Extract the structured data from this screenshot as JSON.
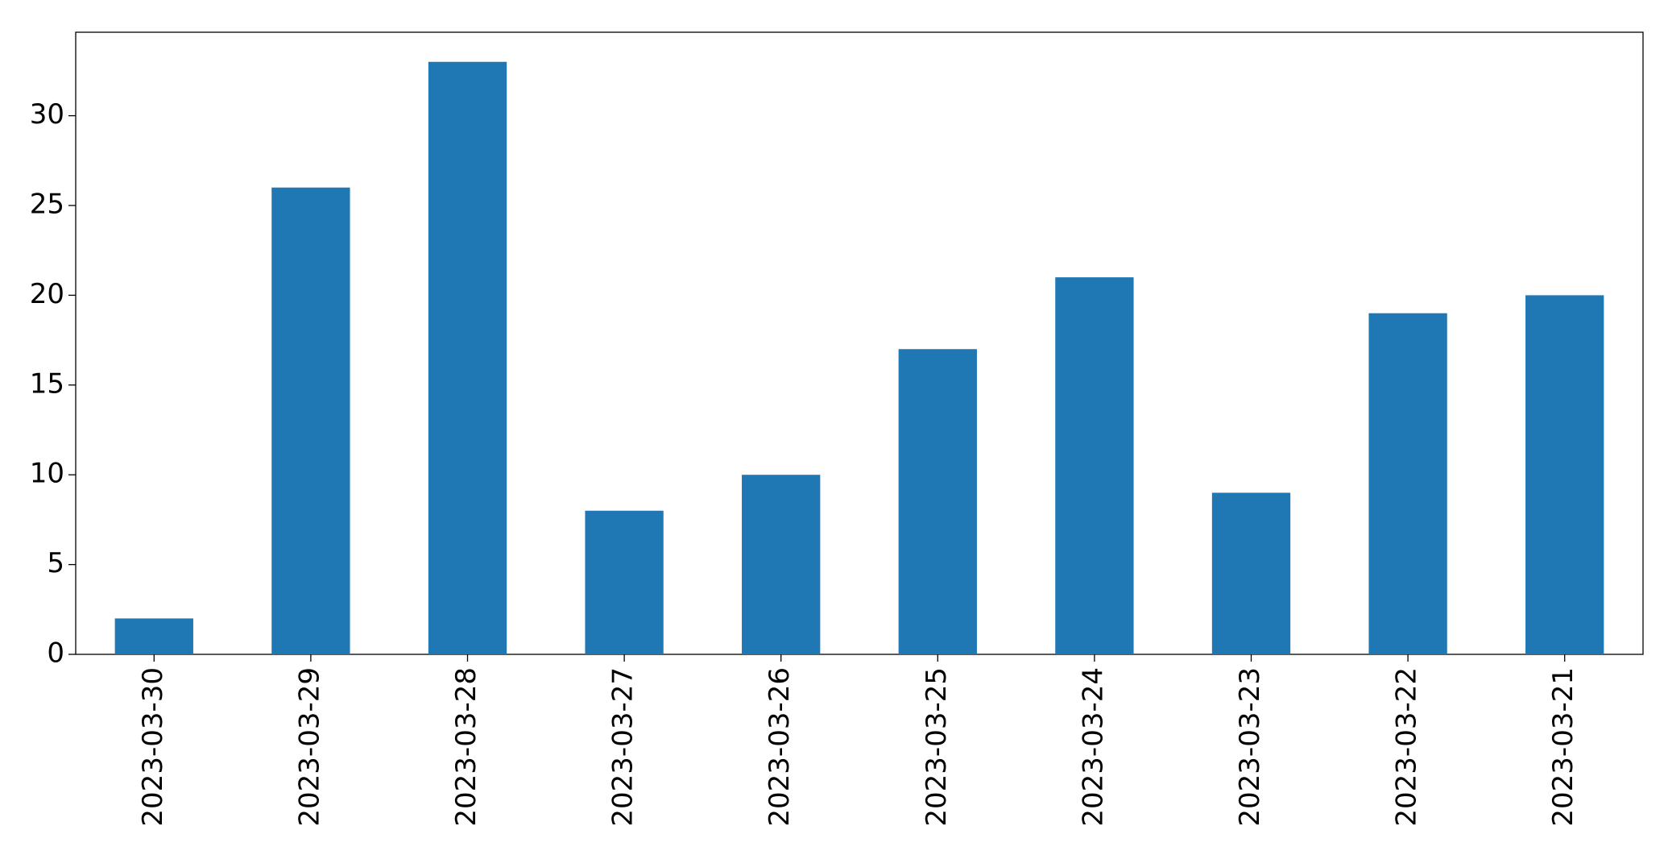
{
  "chart_data": {
    "type": "bar",
    "categories": [
      "2023-03-30",
      "2023-03-29",
      "2023-03-28",
      "2023-03-27",
      "2023-03-26",
      "2023-03-25",
      "2023-03-24",
      "2023-03-23",
      "2023-03-22",
      "2023-03-21"
    ],
    "values": [
      2,
      26,
      33,
      8,
      10,
      17,
      21,
      9,
      19,
      20
    ],
    "color": "#1f77b4",
    "ylim": [
      0,
      34.65
    ],
    "yticks": [
      0,
      5,
      10,
      15,
      20,
      25,
      30
    ],
    "grid": false
  }
}
